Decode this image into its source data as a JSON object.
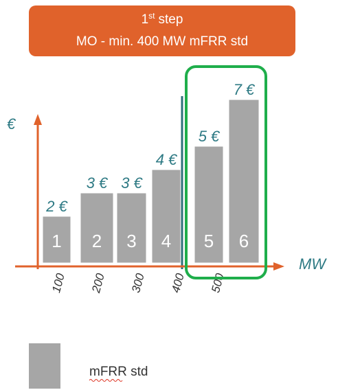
{
  "header": {
    "title": {
      "main": "1",
      "superscript": "st",
      "rest": "step"
    },
    "subtitle": "MO - min. 400 MW mFRR std"
  },
  "chart_data": {
    "type": "bar",
    "categories": [
      "1",
      "2",
      "3",
      "4",
      "5",
      "6"
    ],
    "values": [
      2,
      3,
      3,
      4,
      5,
      7
    ],
    "value_labels": [
      "2 €",
      "3 €",
      "3 €",
      "4 €",
      "5 €",
      "7 €"
    ],
    "color": "#a6a6a6",
    "ylabel": "€",
    "xlabel": "MW",
    "ylim": [
      0,
      7.5
    ],
    "xlim": [
      0,
      550
    ],
    "xticks": [
      100,
      200,
      300,
      400,
      500
    ],
    "legend": {
      "name": "mFRR std",
      "color": "#a6a6a6"
    }
  }
}
